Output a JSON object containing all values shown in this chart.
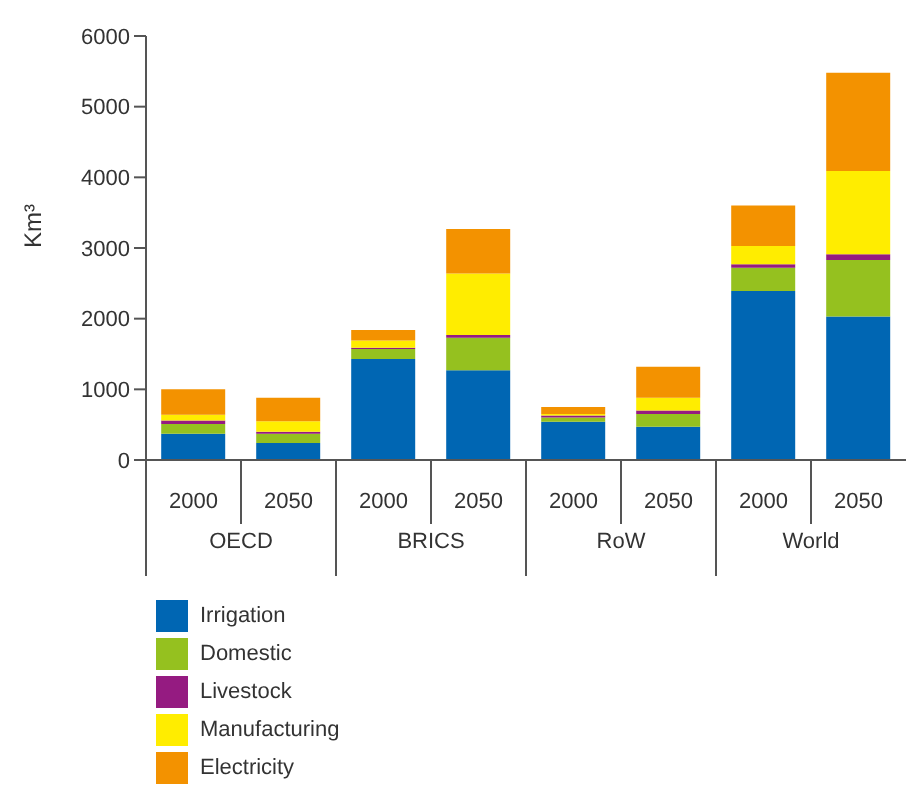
{
  "chart_data": {
    "type": "bar",
    "stacked": true,
    "ylabel": "Km³",
    "categories": [
      "2000",
      "2050",
      "2000",
      "2050",
      "2000",
      "2050",
      "2000",
      "2050"
    ],
    "annotations": [
      "OECD",
      "BRICS",
      "RoW",
      "World"
    ],
    "series": [
      {
        "name": "Irrigation",
        "color": "#0066b3",
        "values": [
          370,
          240,
          1430,
          1270,
          540,
          470,
          2390,
          2030
        ]
      },
      {
        "name": "Domestic",
        "color": "#95c11f",
        "values": [
          140,
          130,
          140,
          460,
          60,
          180,
          330,
          800
        ]
      },
      {
        "name": "Livestock",
        "color": "#951b81",
        "values": [
          50,
          30,
          20,
          40,
          30,
          50,
          50,
          80
        ]
      },
      {
        "name": "Manufacturing",
        "color": "#ffed00",
        "values": [
          80,
          150,
          100,
          870,
          20,
          180,
          260,
          1180
        ]
      },
      {
        "name": "Electricity",
        "color": "#f39200",
        "values": [
          360,
          330,
          150,
          630,
          100,
          440,
          570,
          1390
        ]
      }
    ],
    "ylim": [
      0,
      6000
    ],
    "yticks": [
      0,
      1000,
      2000,
      3000,
      4000,
      5000,
      6000
    ],
    "grid": false,
    "legend": "bottom"
  }
}
